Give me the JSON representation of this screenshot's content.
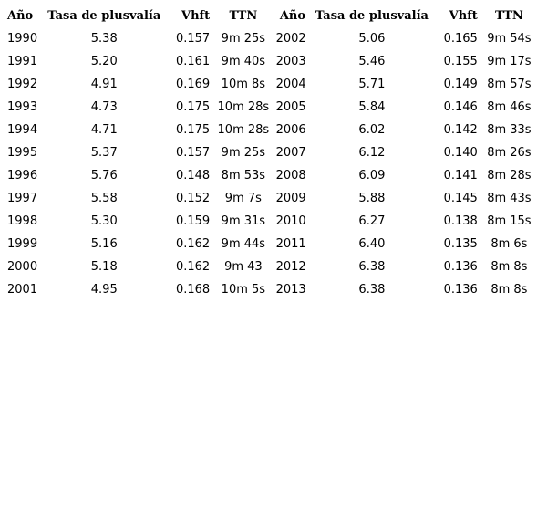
{
  "headers": [
    "Año",
    "Tasa de  plusvalía",
    "Vhft",
    "TTN",
    "Año",
    "Tasa de  plusvalía",
    "Vhft",
    "TTN"
  ],
  "rows": [
    [
      "1990",
      "5.38",
      "0.157",
      "9m 25s",
      "2002",
      "5.06",
      "0.165",
      "9m 54s"
    ],
    [
      "1991",
      "5.20",
      "0.161",
      "9m 40s",
      "2003",
      "5.46",
      "0.155",
      "9m 17s"
    ],
    [
      "1992",
      "4.91",
      "0.169",
      "10m 8s",
      "2004",
      "5.71",
      "0.149",
      "8m 57s"
    ],
    [
      "1993",
      "4.73",
      "0.175",
      "10m 28s",
      "2005",
      "5.84",
      "0.146",
      "8m 46s"
    ],
    [
      "1994",
      "4.71",
      "0.175",
      "10m 28s",
      "2006",
      "6.02",
      "0.142",
      "8m 33s"
    ],
    [
      "1995",
      "5.37",
      "0.157",
      "9m 25s",
      "2007",
      "6.12",
      "0.140",
      "8m 26s"
    ],
    [
      "1996",
      "5.76",
      "0.148",
      "8m 53s",
      "2008",
      "6.09",
      "0.141",
      "8m 28s"
    ],
    [
      "1997",
      "5.58",
      "0.152",
      "9m 7s",
      "2009",
      "5.88",
      "0.145",
      "8m 43s"
    ],
    [
      "1998",
      "5.30",
      "0.159",
      "9m 31s",
      "2010",
      "6.27",
      "0.138",
      "8m 15s"
    ],
    [
      "1999",
      "5.16",
      "0.162",
      "9m 44s",
      "2011",
      "6.40",
      "0.135",
      "8m 6s"
    ],
    [
      "2000",
      "5.18",
      "0.162",
      "9m 43",
      "2012",
      "6.38",
      "0.136",
      "8m 8s"
    ],
    [
      "2001",
      "4.95",
      "0.168",
      "10m 5s",
      "2013",
      "6.38",
      "0.136",
      "8m 8s"
    ]
  ]
}
